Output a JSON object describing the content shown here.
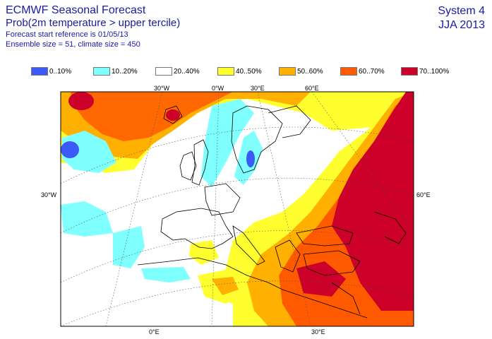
{
  "header": {
    "title": "ECMWF Seasonal Forecast",
    "subtitle": "Prob(2m temperature > upper tercile)",
    "start_ref": "Forecast start reference is 01/05/13",
    "ensemble": "Ensemble size = 51, climate size = 450",
    "system": "System 4",
    "season": "JJA 2013"
  },
  "legend": [
    {
      "label": "0..10%",
      "color": "#3c5af5"
    },
    {
      "label": "10..20%",
      "color": "#80ffff"
    },
    {
      "label": "20..40%",
      "color": "#ffffff"
    },
    {
      "label": "40..50%",
      "color": "#ffff30"
    },
    {
      "label": "50..60%",
      "color": "#ffb000"
    },
    {
      "label": "60..70%",
      "color": "#ff5a00"
    },
    {
      "label": "70..100%",
      "color": "#cc0028"
    }
  ],
  "grid_labels": {
    "top": [
      "30°W",
      "0°W",
      "30°E",
      "60°E"
    ],
    "left": "30°W",
    "right": "60°E",
    "bottom": [
      "0°E",
      "30°E"
    ]
  }
}
